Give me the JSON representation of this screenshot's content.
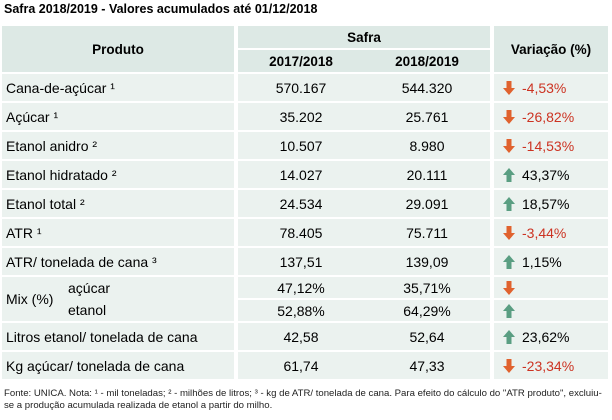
{
  "title": "Safra 2018/2019 - Valores acumulados até 01/12/2018",
  "headers": {
    "product": "Produto",
    "safra": "Safra",
    "col1": "2017/2018",
    "col2": "2018/2019",
    "variation": "Variação (%)"
  },
  "rows": [
    {
      "product": "Cana-de-açúcar ¹",
      "v1": "570.167",
      "v2": "544.320",
      "variation": "-4,53%",
      "trend": "down"
    },
    {
      "product": "Açúcar ¹",
      "v1": "35.202",
      "v2": "25.761",
      "variation": "-26,82%",
      "trend": "down"
    },
    {
      "product": "Etanol anidro ²",
      "v1": "10.507",
      "v2": "8.980",
      "variation": "-14,53%",
      "trend": "down"
    },
    {
      "product": "Etanol hidratado ²",
      "v1": "14.027",
      "v2": "20.111",
      "variation": "43,37%",
      "trend": "up"
    },
    {
      "product": "Etanol total ²",
      "v1": "24.534",
      "v2": "29.091",
      "variation": "18,57%",
      "trend": "up"
    },
    {
      "product": "ATR ¹",
      "v1": "78.405",
      "v2": "75.711",
      "variation": "-3,44%",
      "trend": "down"
    },
    {
      "product": "ATR/ tonelada de cana ³",
      "v1": "137,51",
      "v2": "139,09",
      "variation": "1,15%",
      "trend": "up"
    }
  ],
  "mix": {
    "label": "Mix (%)",
    "rows": [
      {
        "sub": "açúcar",
        "v1": "47,12%",
        "v2": "35,71%",
        "trend": "down"
      },
      {
        "sub": "etanol",
        "v1": "52,88%",
        "v2": "64,29%",
        "trend": "up"
      }
    ]
  },
  "rows_after": [
    {
      "product": "Litros etanol/ tonelada de cana",
      "v1": "42,58",
      "v2": "52,64",
      "variation": "23,62%",
      "trend": "up"
    },
    {
      "product": "Kg açúcar/ tonelada de cana",
      "v1": "61,74",
      "v2": "47,33",
      "variation": "-23,34%",
      "trend": "down"
    }
  ],
  "colors": {
    "down_arrow": "#e0622e",
    "up_arrow": "#5a9e82",
    "negative_text": "#cc3322"
  },
  "icons": {
    "down": "arrow-down-icon",
    "up": "arrow-up-icon"
  },
  "footnote": "Fonte: UNICA. Nota: ¹ - mil toneladas; ² - milhões de litros; ³ - kg de ATR/ tonelada de cana. Para efeito do cálculo do \"ATR produto\", excluiu-se a produção acumulada realizada de etanol a partir do milho."
}
